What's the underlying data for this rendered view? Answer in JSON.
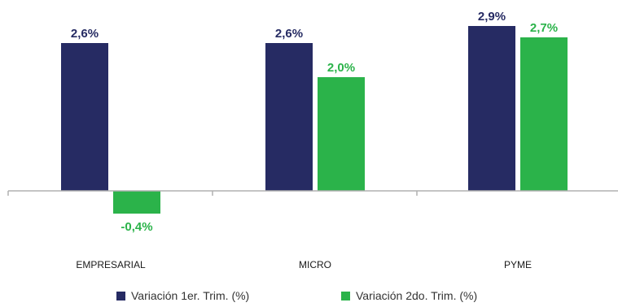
{
  "chart_data": {
    "type": "bar",
    "categories": [
      "EMPRESARIAL",
      "MICRO",
      "PYME"
    ],
    "series": [
      {
        "name": "Variación 1er. Trim. (%)",
        "values": [
          2.6,
          2.6,
          2.9
        ],
        "labels": [
          "2,6%",
          "2,6%",
          "2,9%"
        ],
        "color": "#262b63"
      },
      {
        "name": "Variación 2do. Trim. (%)",
        "values": [
          -0.4,
          2.0,
          2.7
        ],
        "labels": [
          "-0,4%",
          "2,0%",
          "2,7%"
        ],
        "color": "#2bb34a"
      }
    ],
    "label_colors": [
      "#262b63",
      "#2bb34a"
    ],
    "ylim": [
      -0.5,
      3.0
    ],
    "grid": false,
    "legend_position": "bottom"
  }
}
